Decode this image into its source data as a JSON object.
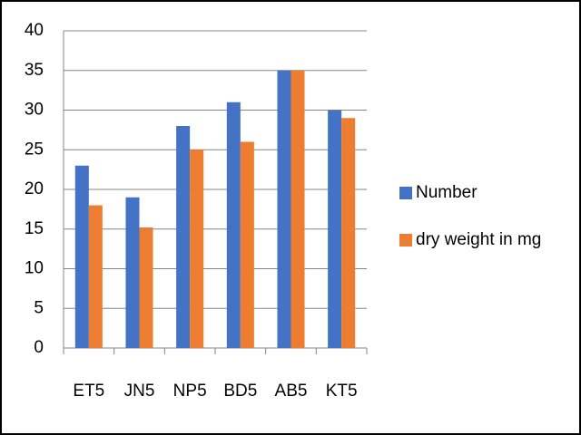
{
  "chart_data": {
    "type": "bar",
    "categories": [
      "ET5",
      "JN5",
      "NP5",
      "BD5",
      "AB5",
      "KT5"
    ],
    "series": [
      {
        "name": "Number",
        "color": "#4472c4",
        "values": [
          23,
          19,
          28,
          31,
          35,
          30
        ]
      },
      {
        "name": "dry weight in mg",
        "color": "#ed7d31",
        "values": [
          18,
          15.2,
          25,
          26,
          35,
          29
        ]
      }
    ],
    "ylim": [
      0,
      40
    ],
    "yticks": [
      0,
      5,
      10,
      15,
      20,
      25,
      30,
      35,
      40
    ],
    "grid": true,
    "legend": "right"
  }
}
